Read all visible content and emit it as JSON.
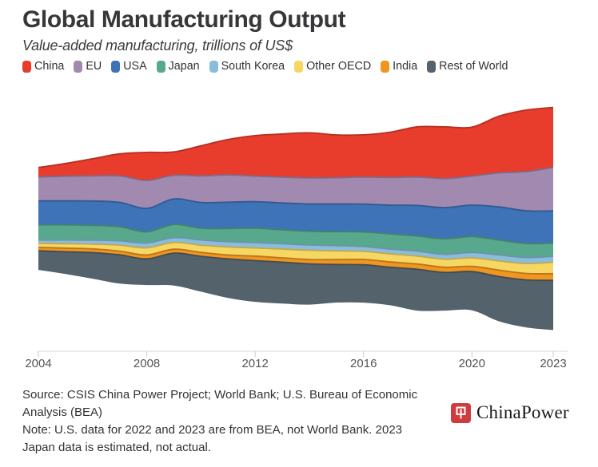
{
  "header": {
    "title": "Global Manufacturing Output",
    "subtitle": "Value-added manufacturing, trillions of US$"
  },
  "chart_data": {
    "type": "area",
    "variant": "streamgraph (centered stacked area)",
    "title": "Global Manufacturing Output",
    "subtitle": "Value-added manufacturing, trillions of US$",
    "unit": "trillions of US$",
    "grid": false,
    "legend_position": "top",
    "stack_order_top_to_bottom": [
      "China",
      "EU",
      "USA",
      "Japan",
      "South Korea",
      "Other OECD",
      "India",
      "Rest of World"
    ],
    "x": [
      2004,
      2005,
      2006,
      2007,
      2008,
      2009,
      2010,
      2011,
      2012,
      2013,
      2014,
      2015,
      2016,
      2017,
      2018,
      2019,
      2020,
      2021,
      2022,
      2023
    ],
    "x_tick_labels": [
      "2004",
      "2008",
      "2012",
      "2016",
      "2020",
      "2023"
    ],
    "series": [
      {
        "name": "China",
        "color": "#e83c2c",
        "values": [
          0.64,
          0.87,
          1.17,
          1.51,
          1.92,
          1.6,
          2.06,
          2.42,
          2.77,
          2.95,
          3.09,
          2.93,
          2.9,
          3.11,
          3.44,
          3.54,
          3.35,
          3.88,
          4.21,
          4.1
        ]
      },
      {
        "name": "EU",
        "color": "#a189b0",
        "values": [
          1.64,
          1.69,
          1.72,
          1.81,
          1.91,
          1.62,
          1.82,
          1.87,
          1.75,
          1.78,
          1.78,
          1.8,
          1.84,
          1.89,
          1.95,
          1.99,
          1.99,
          2.33,
          2.68,
          2.98
        ]
      },
      {
        "name": "USA",
        "color": "#3e73b8",
        "values": [
          1.64,
          1.64,
          1.67,
          1.67,
          1.6,
          1.75,
          1.77,
          1.8,
          1.82,
          1.83,
          1.87,
          1.89,
          1.91,
          1.97,
          2.09,
          2.13,
          2.15,
          2.27,
          2.24,
          2.21
        ]
      },
      {
        "name": "Japan",
        "color": "#57a88c",
        "values": [
          1.04,
          1.04,
          1.01,
          0.96,
          0.77,
          0.9,
          0.8,
          0.9,
          0.98,
          0.96,
          0.94,
          0.96,
          1.0,
          1.04,
          1.04,
          1.07,
          1.09,
          1.02,
          0.96,
          0.91
        ]
      },
      {
        "name": "South Korea",
        "color": "#8abddb",
        "values": [
          0.23,
          0.25,
          0.27,
          0.3,
          0.33,
          0.33,
          0.36,
          0.36,
          0.37,
          0.36,
          0.36,
          0.36,
          0.33,
          0.33,
          0.33,
          0.33,
          0.37,
          0.41,
          0.41,
          0.4
        ]
      },
      {
        "name": "Other OECD",
        "color": "#f6d763",
        "values": [
          0.27,
          0.3,
          0.33,
          0.41,
          0.49,
          0.46,
          0.49,
          0.55,
          0.56,
          0.6,
          0.63,
          0.6,
          0.55,
          0.55,
          0.55,
          0.55,
          0.58,
          0.63,
          0.68,
          0.78
        ]
      },
      {
        "name": "India",
        "color": "#f0951f",
        "values": [
          0.23,
          0.25,
          0.25,
          0.25,
          0.27,
          0.27,
          0.27,
          0.27,
          0.31,
          0.3,
          0.3,
          0.33,
          0.37,
          0.36,
          0.36,
          0.36,
          0.36,
          0.44,
          0.44,
          0.46
        ]
      },
      {
        "name": "Rest of World",
        "color": "#53626b",
        "values": [
          1.31,
          1.52,
          1.79,
          1.97,
          1.79,
          2.22,
          2.42,
          2.67,
          2.82,
          2.83,
          2.79,
          2.61,
          2.59,
          2.61,
          2.83,
          2.61,
          2.65,
          3.06,
          3.25,
          3.4
        ]
      }
    ],
    "axis": {
      "line_color": "#dadada",
      "tick_color": "#c9c9c9",
      "tick_label_color": "#555555"
    }
  },
  "footer": {
    "source": "Source: CSIS China Power Project; World Bank; U.S. Bureau of Economic Analysis (BEA)",
    "note": "Note: U.S. data for 2022 and 2023 are from BEA, not World Bank. 2023 Japan data is estimated, not actual.",
    "logo_text": "ChinaPower",
    "logo_color": "#d03c3e"
  }
}
